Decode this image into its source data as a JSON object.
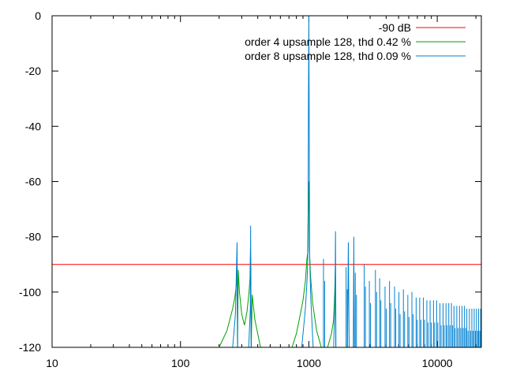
{
  "chart_data": {
    "type": "line",
    "title": "",
    "xlabel": "",
    "ylabel": "",
    "xscale": "log",
    "xlim": [
      10,
      22050
    ],
    "ylim": [
      -120,
      0
    ],
    "grid": false,
    "legend_position": "top-right",
    "xticks": [
      {
        "value": 10,
        "label": "10"
      },
      {
        "value": 100,
        "label": "100"
      },
      {
        "value": 1000,
        "label": "1000"
      },
      {
        "value": 10000,
        "label": "10000"
      }
    ],
    "yticks": [
      {
        "value": 0,
        "label": "0"
      },
      {
        "value": -20,
        "label": "-20"
      },
      {
        "value": -40,
        "label": "-40"
      },
      {
        "value": -60,
        "label": "-60"
      },
      {
        "value": -80,
        "label": "-80"
      },
      {
        "value": -100,
        "label": "-100"
      },
      {
        "value": -120,
        "label": "-120"
      }
    ],
    "series": [
      {
        "name": "-90 dB",
        "color": "#ff0000",
        "points": [
          [
            10,
            -90
          ],
          [
            22050,
            -90
          ]
        ]
      },
      {
        "name": "order 4 upsample 128, thd 0.42 %",
        "color": "#00a000",
        "points": [
          [
            200,
            -120
          ],
          [
            230,
            -114
          ],
          [
            255,
            -106
          ],
          [
            265,
            -102
          ],
          [
            273,
            -97
          ],
          [
            276,
            -90
          ],
          [
            278,
            -120
          ],
          [
            282,
            -92
          ],
          [
            288,
            -100
          ],
          [
            300,
            -108
          ],
          [
            315,
            -112
          ],
          [
            330,
            -107
          ],
          [
            342,
            -100
          ],
          [
            348,
            -95
          ],
          [
            351,
            -84
          ],
          [
            353,
            -90
          ],
          [
            356,
            -120
          ],
          [
            362,
            -101
          ],
          [
            380,
            -110
          ],
          [
            420,
            -120
          ],
          [
            740,
            -120
          ],
          [
            800,
            -115
          ],
          [
            850,
            -109
          ],
          [
            900,
            -103
          ],
          [
            940,
            -96
          ],
          [
            965,
            -88
          ],
          [
            980,
            -86
          ],
          [
            992,
            -62
          ],
          [
            997,
            -60
          ],
          [
            1000,
            -60
          ],
          [
            1003,
            -70
          ],
          [
            1010,
            -84
          ],
          [
            1030,
            -94
          ],
          [
            1070,
            -104
          ],
          [
            1150,
            -114
          ],
          [
            1250,
            -120
          ],
          [
            1400,
            -120
          ],
          [
            1500,
            -115
          ],
          [
            1560,
            -110
          ],
          [
            1590,
            -100
          ],
          [
            1608,
            -92
          ],
          [
            1620,
            -120
          ]
        ]
      },
      {
        "name": "order 8 upsample 128, thd 0.09 %",
        "color": "#0080d0",
        "points": [
          [
            255,
            -120
          ],
          [
            268,
            -108
          ],
          [
            276,
            -82
          ],
          [
            279,
            -120
          ],
          [
            340,
            -120
          ],
          [
            350,
            -106
          ],
          [
            352,
            -76
          ],
          [
            355,
            -120
          ],
          [
            880,
            -120
          ],
          [
            940,
            -106
          ],
          [
            970,
            -95
          ],
          [
            985,
            -85
          ],
          [
            993,
            -30
          ],
          [
            1000,
            0
          ],
          [
            1005,
            -30
          ],
          [
            1015,
            -88
          ],
          [
            1035,
            -102
          ],
          [
            1080,
            -120
          ],
          [
            1560,
            -120
          ],
          [
            1600,
            -100
          ],
          [
            1613,
            -78
          ],
          [
            1625,
            -120
          ],
          [
            2000,
            -120
          ],
          [
            2030,
            -82
          ],
          [
            2060,
            -120
          ],
          [
            2220,
            -120
          ],
          [
            2240,
            -80
          ],
          [
            2260,
            -120
          ]
        ],
        "harmonic_spikes": [
          [
            1300,
            -88
          ],
          [
            1950,
            -91
          ],
          [
            2300,
            -93
          ],
          [
            2700,
            -90
          ],
          [
            2960,
            -96
          ],
          [
            3300,
            -92
          ],
          [
            3560,
            -95
          ],
          [
            3920,
            -98
          ],
          [
            4250,
            -96
          ],
          [
            4650,
            -98
          ],
          [
            5030,
            -100
          ],
          [
            5450,
            -99
          ],
          [
            5900,
            -101
          ],
          [
            6350,
            -100
          ],
          [
            6850,
            -102
          ],
          [
            7300,
            -102
          ],
          [
            7800,
            -102
          ],
          [
            8300,
            -103
          ],
          [
            8800,
            -103
          ],
          [
            9350,
            -103
          ],
          [
            9900,
            -103
          ],
          [
            10500,
            -104
          ],
          [
            11100,
            -104
          ],
          [
            11700,
            -104
          ],
          [
            12300,
            -104
          ],
          [
            12900,
            -104
          ],
          [
            13500,
            -105
          ],
          [
            14200,
            -105
          ],
          [
            14900,
            -105
          ],
          [
            15600,
            -105
          ],
          [
            16300,
            -105
          ],
          [
            17000,
            -106
          ],
          [
            17800,
            -106
          ],
          [
            18600,
            -106
          ],
          [
            19400,
            -106
          ],
          [
            20200,
            -106
          ],
          [
            21000,
            -106
          ],
          [
            21800,
            -106
          ]
        ]
      }
    ]
  }
}
